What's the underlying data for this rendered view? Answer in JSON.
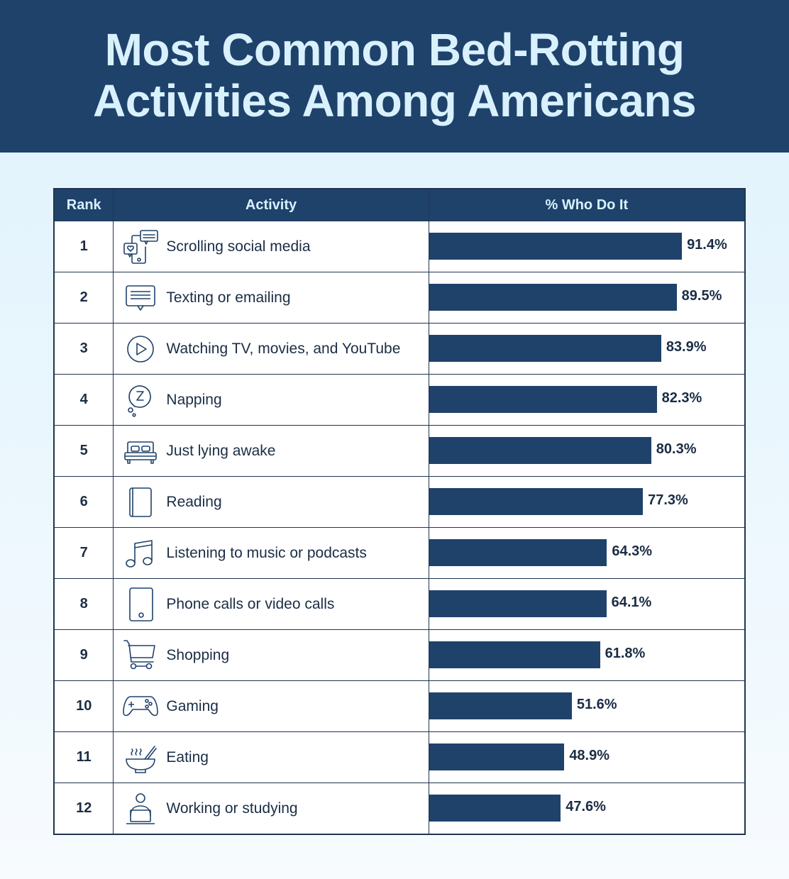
{
  "title_line1": "Most Common Bed-Rotting",
  "title_line2": "Activities Among Americans",
  "colors": {
    "header_bg": "#1f426b",
    "bar": "#1f426b",
    "title_text": "#d8f1fd",
    "body_text": "#1b2d45"
  },
  "table": {
    "headers": {
      "rank": "Rank",
      "activity": "Activity",
      "percent": "% Who Do It"
    }
  },
  "chart_data": {
    "type": "bar",
    "orientation": "horizontal",
    "title": "Most Common Bed-Rotting Activities Among Americans",
    "xlabel": "% Who Do It",
    "ylabel": "Activity",
    "xlim": [
      0,
      100
    ],
    "grid": false,
    "categories": [
      "Scrolling social media",
      "Texting or emailing",
      "Watching TV, movies, and YouTube",
      "Napping",
      "Just lying awake",
      "Reading",
      "Listening to music or podcasts",
      "Phone calls or video calls",
      "Shopping",
      "Gaming",
      "Eating",
      "Working or studying"
    ],
    "values": [
      91.4,
      89.5,
      83.9,
      82.3,
      80.3,
      77.3,
      64.3,
      64.1,
      61.8,
      51.6,
      48.9,
      47.6
    ],
    "value_labels": [
      "91.4%",
      "89.5%",
      "83.9%",
      "82.3%",
      "80.3%",
      "77.3%",
      "64.3%",
      "64.1%",
      "61.8%",
      "51.6%",
      "48.9%",
      "47.6%"
    ],
    "ranks": [
      "1",
      "2",
      "3",
      "4",
      "5",
      "6",
      "7",
      "8",
      "9",
      "10",
      "11",
      "12"
    ],
    "icons": [
      "social-media-icon",
      "message-icon",
      "play-icon",
      "sleep-bubble-icon",
      "bed-icon",
      "book-icon",
      "music-note-icon",
      "smartphone-icon",
      "shopping-cart-icon",
      "game-controller-icon",
      "food-bowl-icon",
      "laptop-user-icon"
    ]
  }
}
